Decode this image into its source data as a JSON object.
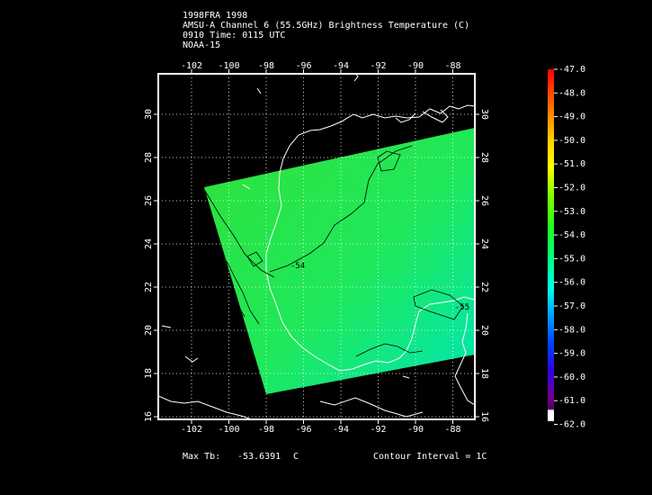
{
  "header": {
    "line1": "1998FRA 1998",
    "line2": "AMSU-A Channel 6 (55.5GHz) Brightness Temperature (C)",
    "line3": "0910 Time: 0115 UTC",
    "line4": "NOAA-15"
  },
  "map": {
    "lon_ticks": [
      "-102",
      "-100",
      "-98",
      "-96",
      "-94",
      "-92",
      "-90",
      "-88"
    ],
    "lat_ticks": [
      "30",
      "28",
      "26",
      "24",
      "22",
      "20",
      "18",
      "16"
    ],
    "contour_labels": [
      "-54",
      "-55"
    ],
    "colors": {
      "swath_high": "#33e63a",
      "swath_low": "#00e8b8",
      "coast": "#ffffff",
      "contour": "#000000"
    }
  },
  "colorbar": {
    "labels": [
      "-47.0",
      "-48.0",
      "-49.0",
      "-50.0",
      "-51.0",
      "-52.0",
      "-53.0",
      "-54.0",
      "-55.0",
      "-56.0",
      "-57.0",
      "-58.0",
      "-59.0",
      "-60.0",
      "-61.0",
      "-62.0"
    ],
    "colors": [
      "#ff0000",
      "#ff3a00",
      "#ff8000",
      "#ffc000",
      "#ffff00",
      "#a8ff00",
      "#40ff00",
      "#00ff40",
      "#00ffa0",
      "#00ffe8",
      "#00b4ff",
      "#0050ff",
      "#2000ff",
      "#6a00d0",
      "#700090",
      "#ffffff"
    ]
  },
  "footer": {
    "max_label": "Max Tb:",
    "max_value": "-53.6391",
    "max_unit": "C",
    "contour_interval": "Contour Interval = 1C"
  }
}
